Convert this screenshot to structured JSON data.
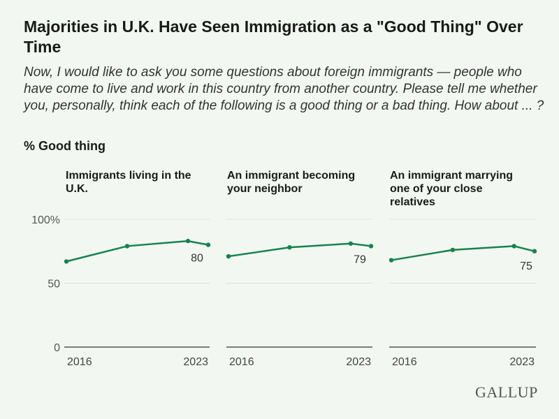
{
  "title": "Majorities in U.K. Have Seen Immigration as a \"Good Thing\" Over Time",
  "subtitle": "Now, I would like to ask you some questions about foreign immigrants — people who have come to live and work in this country from another country. Please tell me whether you, personally, think each of the following is a good thing or a bad thing. How about ... ?",
  "measure": "% Good thing",
  "logo": "GALLUP",
  "colors": {
    "line": "#16834c",
    "grid": "#dde3dc",
    "background": "#f2f8f1"
  },
  "chart_data": [
    {
      "type": "line",
      "title": "Immigrants living in the U.K.",
      "x": [
        2016,
        2019,
        2022,
        2023
      ],
      "values": [
        67,
        79,
        83,
        80
      ],
      "end_label": "80",
      "xticks": [
        "2016",
        "2023"
      ],
      "yticks": [
        "0",
        "50",
        "100%"
      ],
      "ylim": [
        0,
        100
      ],
      "grid": true
    },
    {
      "type": "line",
      "title": "An immigrant becoming your neighbor",
      "x": [
        2016,
        2019,
        2022,
        2023
      ],
      "values": [
        71,
        78,
        81,
        79
      ],
      "end_label": "79",
      "xticks": [
        "2016",
        "2023"
      ],
      "yticks": [
        "0",
        "50",
        "100%"
      ],
      "ylim": [
        0,
        100
      ],
      "grid": true
    },
    {
      "type": "line",
      "title": "An immigrant marrying one of your close relatives",
      "x": [
        2016,
        2019,
        2022,
        2023
      ],
      "values": [
        68,
        76,
        79,
        75
      ],
      "end_label": "75",
      "xticks": [
        "2016",
        "2023"
      ],
      "yticks": [
        "0",
        "50",
        "100%"
      ],
      "ylim": [
        0,
        100
      ],
      "grid": true
    }
  ]
}
